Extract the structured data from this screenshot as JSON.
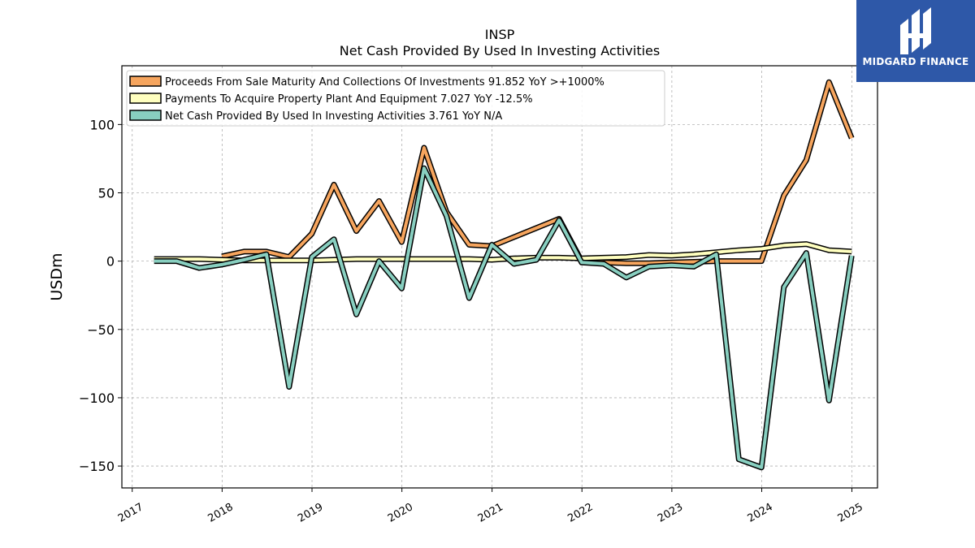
{
  "chart_data": {
    "type": "line",
    "title": "INSP",
    "subtitle": "Net Cash Provided By Used In Investing Activities",
    "ylabel": "USDm",
    "xlabel": "",
    "xlim": [
      "2016-11-20",
      "2025-04-15"
    ],
    "ylim": [
      -166,
      143
    ],
    "yticks": [
      100,
      50,
      0,
      -50,
      -100,
      -150
    ],
    "ytick_labels": [
      "100",
      "50",
      "0",
      "−50",
      "−100",
      "−150"
    ],
    "xticks": [
      "2017-01-01",
      "2018-01-01",
      "2019-01-01",
      "2020-01-01",
      "2021-01-01",
      "2022-01-01",
      "2023-01-01",
      "2024-01-01",
      "2025-01-01"
    ],
    "xtick_labels": [
      "2017",
      "2018",
      "2019",
      "2020",
      "2021",
      "2022",
      "2023",
      "2024",
      "2025"
    ],
    "grid": true,
    "legend_position": "top-left",
    "series": [
      {
        "name": "Proceeds From Sale Maturity And Collections Of Investments",
        "legend_label": "Proceeds From Sale Maturity And Collections Of Investments  91.852 YoY >+1000%",
        "color": "#f6a55e",
        "points": [
          [
            "2017-12-31",
            3.5
          ],
          [
            "2018-03-31",
            7
          ],
          [
            "2018-06-30",
            7
          ],
          [
            "2018-09-30",
            3
          ],
          [
            "2018-12-31",
            20
          ],
          [
            "2019-03-31",
            56
          ],
          [
            "2019-06-30",
            22
          ],
          [
            "2019-09-30",
            44
          ],
          [
            "2019-12-31",
            14
          ],
          [
            "2020-03-31",
            83
          ],
          [
            "2020-06-30",
            36
          ],
          [
            "2020-09-30",
            12
          ],
          [
            "2020-12-31",
            11
          ],
          [
            "2021-09-30",
            31
          ],
          [
            "2021-12-31",
            0
          ],
          [
            "2022-03-31",
            -1
          ],
          [
            "2022-06-30",
            -1.5
          ],
          [
            "2022-09-30",
            -1.5
          ],
          [
            "2022-12-31",
            -1
          ],
          [
            "2023-03-31",
            -0.5
          ],
          [
            "2023-06-30",
            0
          ],
          [
            "2023-09-30",
            0
          ],
          [
            "2023-12-31",
            0
          ],
          [
            "2024-03-31",
            48
          ],
          [
            "2024-06-30",
            74
          ],
          [
            "2024-09-30",
            131
          ],
          [
            "2024-12-31",
            90
          ]
        ]
      },
      {
        "name": "Payments To Acquire Property Plant And Equipment",
        "legend_label": "Payments To Acquire Property Plant And Equipment  7.027 YoY -12.5%",
        "color": "#ffffbf",
        "points": [
          [
            "2017-03-31",
            1.5
          ],
          [
            "2017-06-30",
            1.5
          ],
          [
            "2017-09-30",
            1.5
          ],
          [
            "2017-12-31",
            1.0
          ],
          [
            "2018-03-31",
            0.5
          ],
          [
            "2018-06-30",
            0.5
          ],
          [
            "2018-09-30",
            0.5
          ],
          [
            "2018-12-31",
            0.5
          ],
          [
            "2019-03-31",
            1
          ],
          [
            "2019-06-30",
            1.5
          ],
          [
            "2019-09-30",
            1.5
          ],
          [
            "2019-12-31",
            1.5
          ],
          [
            "2020-03-31",
            1.5
          ],
          [
            "2020-06-30",
            1.5
          ],
          [
            "2020-09-30",
            1.5
          ],
          [
            "2020-12-31",
            1
          ],
          [
            "2021-03-31",
            2
          ],
          [
            "2021-06-30",
            2.5
          ],
          [
            "2021-09-30",
            2.5
          ],
          [
            "2021-12-31",
            2
          ],
          [
            "2022-03-31",
            2.5
          ],
          [
            "2022-06-30",
            3
          ],
          [
            "2022-09-30",
            4.5
          ],
          [
            "2022-12-31",
            4
          ],
          [
            "2023-03-31",
            5
          ],
          [
            "2023-06-30",
            6.5
          ],
          [
            "2023-09-30",
            8
          ],
          [
            "2023-12-31",
            9
          ],
          [
            "2024-03-31",
            11.5
          ],
          [
            "2024-06-30",
            12.5
          ],
          [
            "2024-09-30",
            8
          ],
          [
            "2024-12-31",
            7
          ]
        ]
      },
      {
        "name": "Net Cash Provided By Used In Investing Activities",
        "legend_label": "Net Cash Provided By Used In Investing Activities  3.761 YoY N/A",
        "color": "#88cfc0",
        "points": [
          [
            "2017-03-31",
            0
          ],
          [
            "2017-06-30",
            0
          ],
          [
            "2017-09-30",
            -5
          ],
          [
            "2017-12-31",
            -2.5
          ],
          [
            "2018-03-31",
            1
          ],
          [
            "2018-06-30",
            5
          ],
          [
            "2018-09-30",
            -92
          ],
          [
            "2018-12-31",
            3
          ],
          [
            "2019-03-31",
            16
          ],
          [
            "2019-06-30",
            -39
          ],
          [
            "2019-09-30",
            0
          ],
          [
            "2019-12-31",
            -20
          ],
          [
            "2020-03-31",
            68
          ],
          [
            "2020-06-30",
            33
          ],
          [
            "2020-09-30",
            -27
          ],
          [
            "2020-12-31",
            12
          ],
          [
            "2021-03-31",
            -2
          ],
          [
            "2021-06-30",
            1
          ],
          [
            "2021-09-30",
            30
          ],
          [
            "2021-12-31",
            -1
          ],
          [
            "2022-03-31",
            -2
          ],
          [
            "2022-06-30",
            -12
          ],
          [
            "2022-09-30",
            -4
          ],
          [
            "2022-12-31",
            -3
          ],
          [
            "2023-03-31",
            -4
          ],
          [
            "2023-06-30",
            5
          ],
          [
            "2023-09-30",
            -145
          ],
          [
            "2023-12-31",
            -151
          ],
          [
            "2024-03-31",
            -19
          ],
          [
            "2024-06-30",
            6
          ],
          [
            "2024-09-30",
            -102
          ],
          [
            "2024-12-31",
            4
          ]
        ]
      }
    ]
  },
  "logo": {
    "text": "MIDGARD FINANCE",
    "bg_color": "#2e58a8"
  }
}
